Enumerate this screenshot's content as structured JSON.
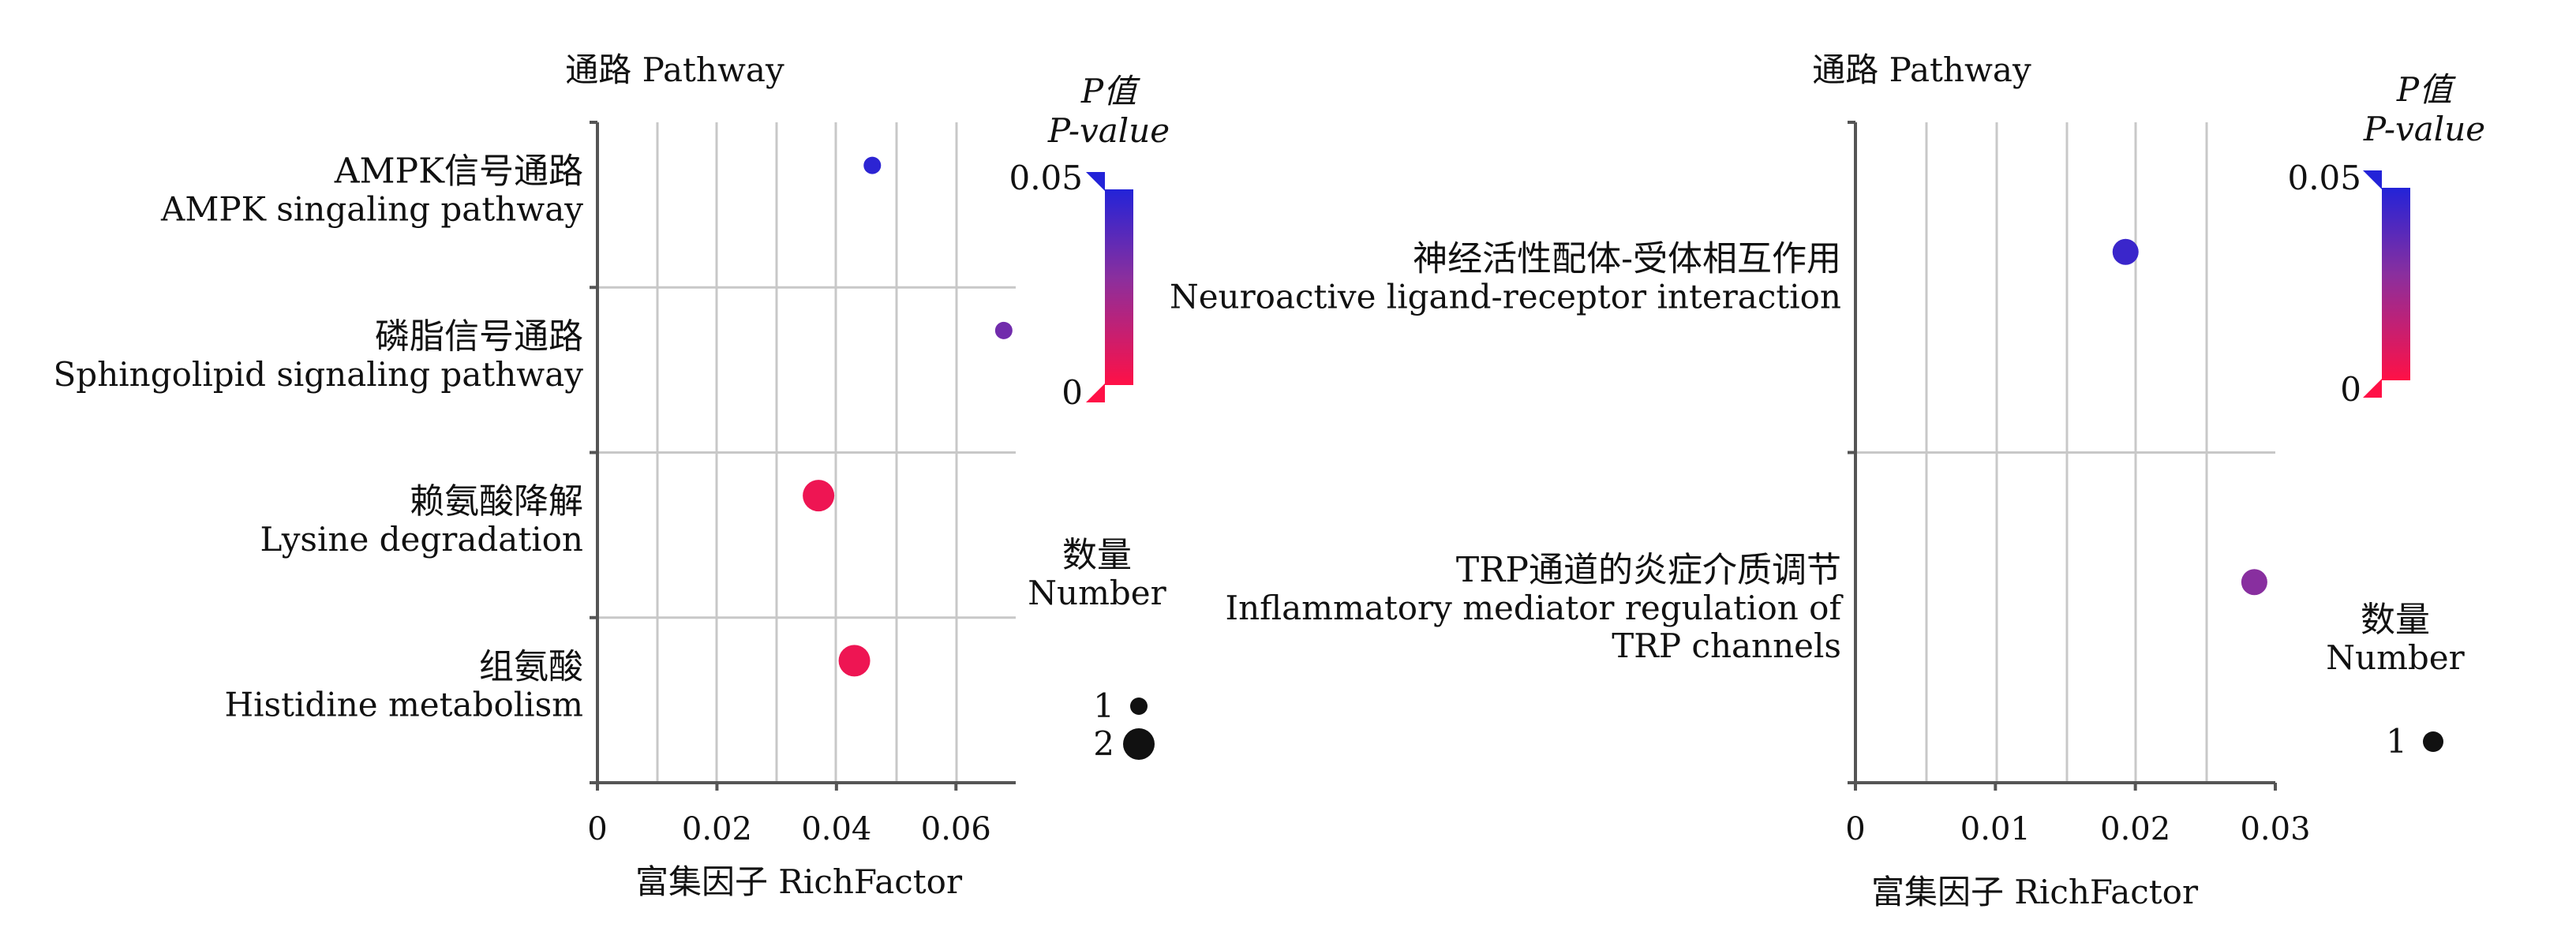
{
  "chart_data": [
    {
      "type": "scatter",
      "title": "",
      "ylabel": "通路 Pathway",
      "xlabel": "富集因子 RichFactor",
      "xlim": [
        0,
        0.07
      ],
      "xticks": [
        0,
        0.02,
        0.04,
        0.06
      ],
      "xtick_labels": [
        "0",
        "0.02",
        "0.04",
        "0.06"
      ],
      "grid": true,
      "categories": [
        {
          "zh": "AMPK信号通路",
          "en": [
            "AMPK singaling pathway"
          ]
        },
        {
          "zh": "磷脂信号通路",
          "en": [
            "Sphingolipid signaling pathway"
          ]
        },
        {
          "zh": "赖氨酸降解",
          "en": [
            "Lysine degradation"
          ]
        },
        {
          "zh": "组氨酸",
          "en": [
            "Histidine metabolism"
          ]
        }
      ],
      "points": [
        {
          "category": "AMPK信号通路",
          "x": 0.046,
          "p_value": 0.048,
          "number": 1
        },
        {
          "category": "磷脂信号通路",
          "x": 0.068,
          "p_value": 0.033,
          "number": 1
        },
        {
          "category": "赖氨酸降解",
          "x": 0.037,
          "p_value": 0.004,
          "number": 2
        },
        {
          "category": "组氨酸",
          "x": 0.043,
          "p_value": 0.004,
          "number": 2
        }
      ],
      "color_legend": {
        "title_zh": "P值",
        "title_en": "P-value",
        "max_label": "0.05",
        "min_label": "0",
        "range": [
          0,
          0.05
        ],
        "color_high": "#2323d8",
        "color_mid": "#8a2f9e",
        "color_low": "#ff1046"
      },
      "size_legend": {
        "title_zh": "数量",
        "title_en": "Number",
        "items": [
          {
            "label": "1",
            "value": 1
          },
          {
            "label": "2",
            "value": 2
          }
        ]
      },
      "legend_position": "right"
    },
    {
      "type": "scatter",
      "title": "",
      "ylabel": "通路 Pathway",
      "xlabel": "富集因子 RichFactor",
      "xlim": [
        0,
        0.03
      ],
      "xticks": [
        0,
        0.01,
        0.02,
        0.03
      ],
      "xtick_labels": [
        "0",
        "0.01",
        "0.02",
        "0.03"
      ],
      "grid": true,
      "categories": [
        {
          "zh": "神经活性配体-受体相互作用",
          "en": [
            "Neuroactive ligand-receptor interaction"
          ]
        },
        {
          "zh": "TRP通道的炎症介质调节",
          "en": [
            "Inflammatory mediator regulation of",
            "TRP channels"
          ]
        }
      ],
      "points": [
        {
          "category": "神经活性配体-受体相互作用",
          "x": 0.0193,
          "p_value": 0.045,
          "number": 1
        },
        {
          "category": "TRP通道的炎症介质调节",
          "x": 0.0285,
          "p_value": 0.028,
          "number": 1
        }
      ],
      "color_legend": {
        "title_zh": "P值",
        "title_en": "P-value",
        "max_label": "0.05",
        "min_label": "0",
        "range": [
          0,
          0.05
        ],
        "color_high": "#2323d8",
        "color_mid": "#8a2f9e",
        "color_low": "#ff1046"
      },
      "size_legend": {
        "title_zh": "数量",
        "title_en": "Number",
        "items": [
          {
            "label": "1",
            "value": 1
          }
        ]
      },
      "legend_position": "right"
    }
  ]
}
